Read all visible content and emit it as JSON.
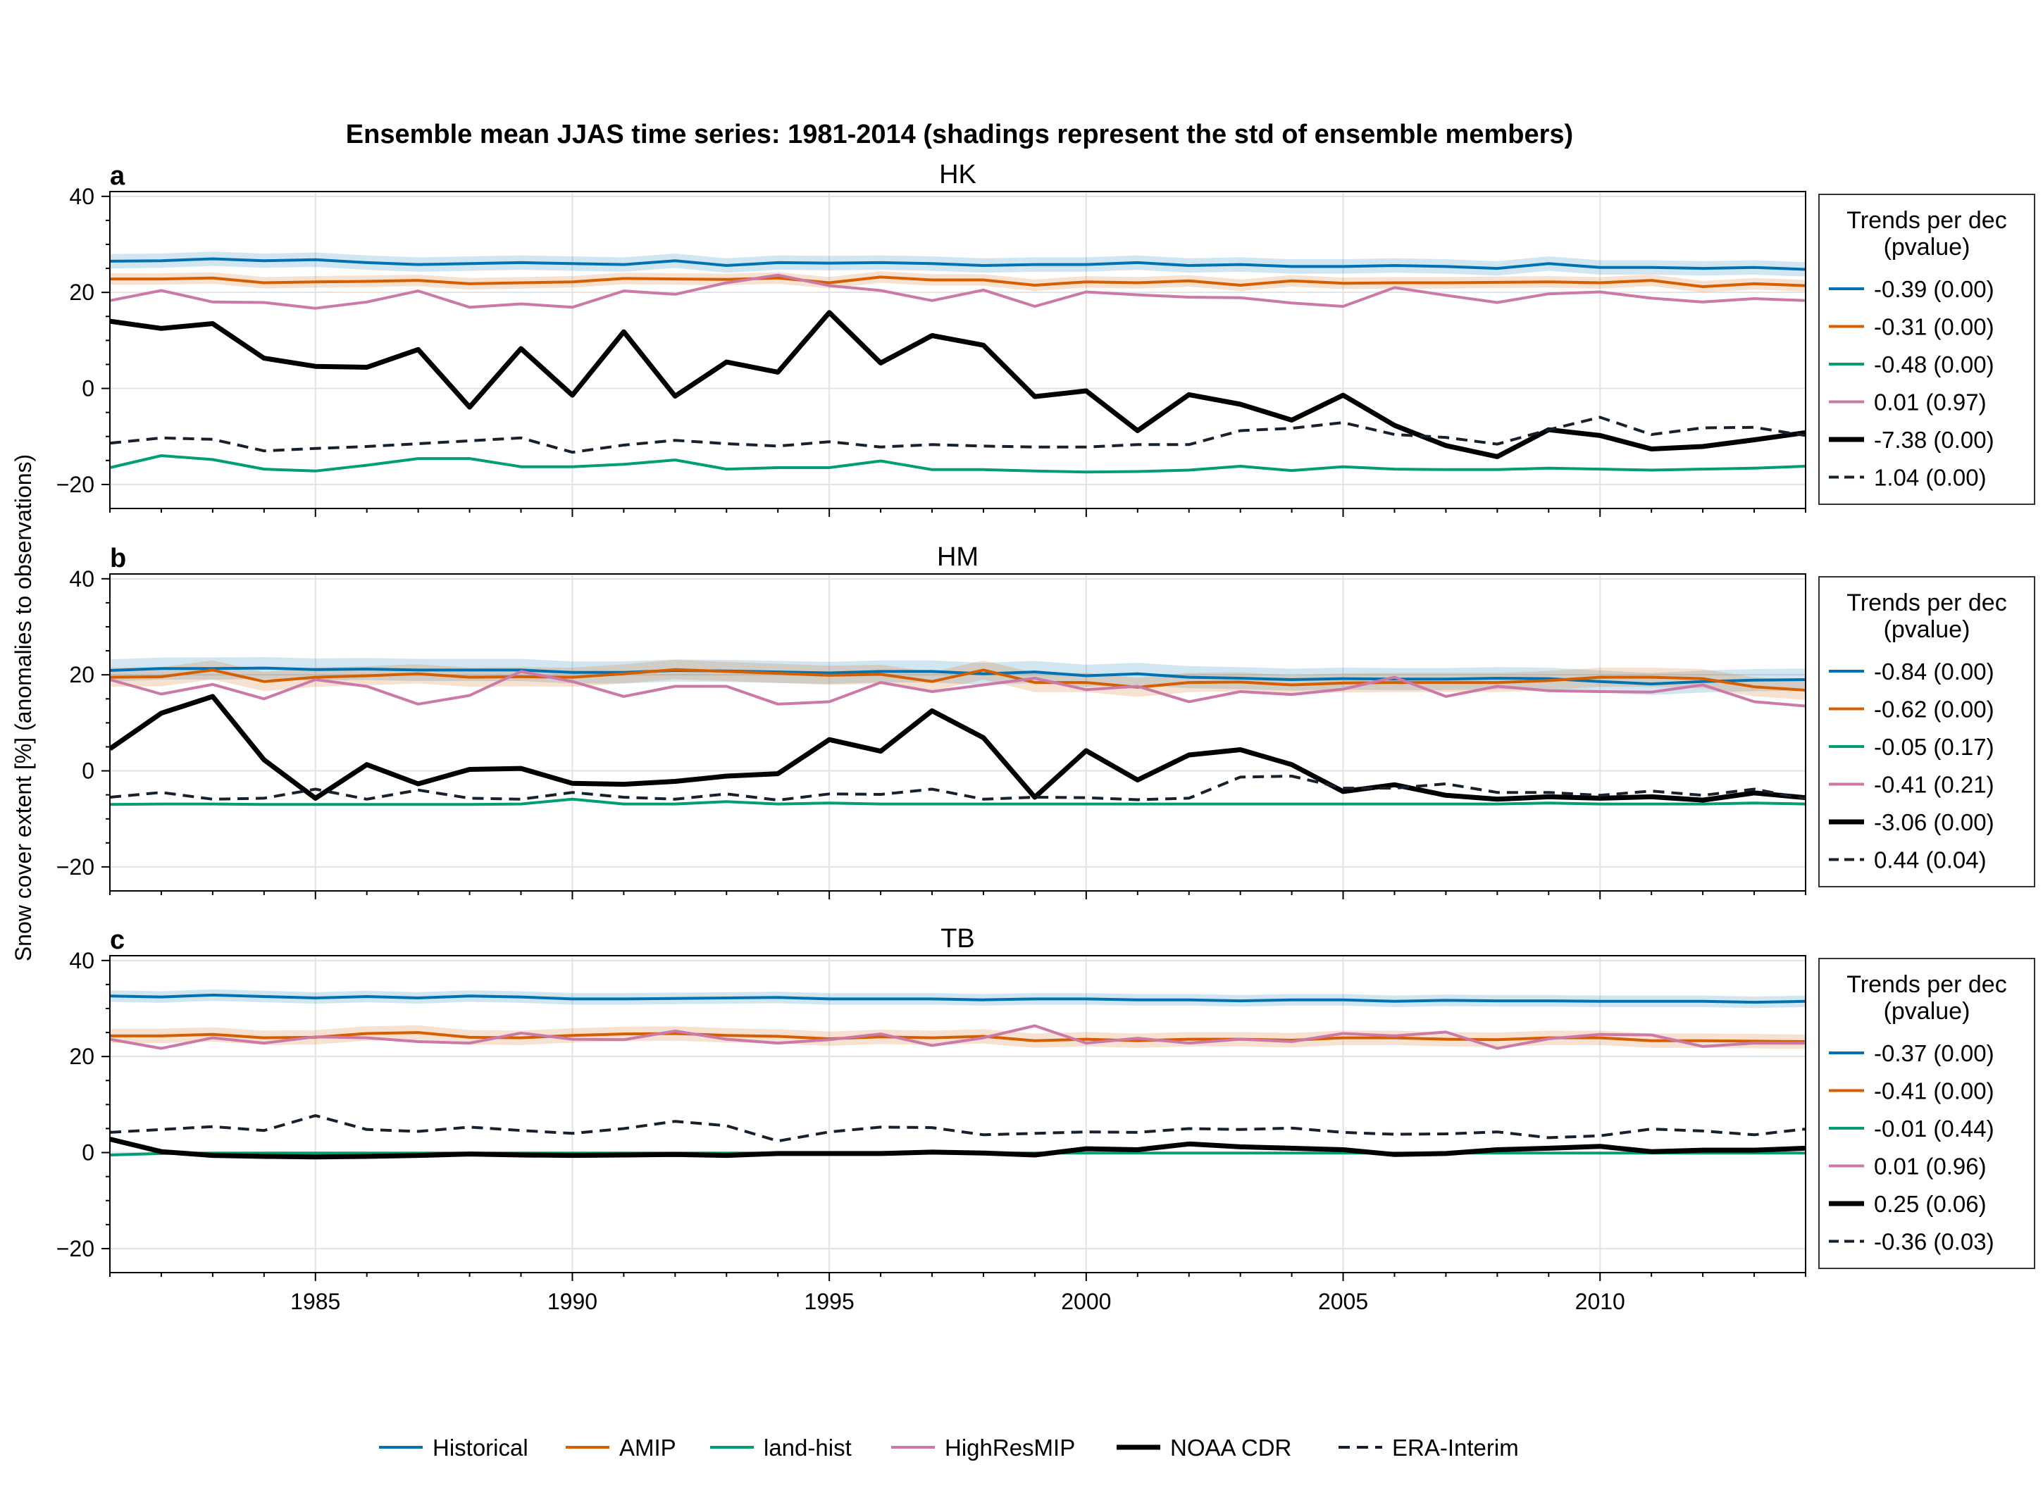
{
  "chart_data": {
    "type": "line",
    "title": "Ensemble mean JJAS time series: 1981-2014 (shadings represent the std of ensemble members)",
    "ylabel": "Snow cover extent [%] (anomalies to observations)",
    "xlim": [
      1981,
      2014
    ],
    "ylim": [
      -25,
      41
    ],
    "xticks": [
      1985,
      1990,
      1995,
      2000,
      2005,
      2010
    ],
    "yticks": [
      -20,
      0,
      20,
      40
    ],
    "grid": true,
    "years": [
      1981,
      1982,
      1983,
      1984,
      1985,
      1986,
      1987,
      1988,
      1989,
      1990,
      1991,
      1992,
      1993,
      1994,
      1995,
      1996,
      1997,
      1998,
      1999,
      2000,
      2001,
      2002,
      2003,
      2004,
      2005,
      2006,
      2007,
      2008,
      2009,
      2010,
      2011,
      2012,
      2013,
      2014
    ],
    "legend_placement": "bottom",
    "series_styles": [
      {
        "name": "Historical",
        "color": "#0072b2",
        "width": 4,
        "dash": ""
      },
      {
        "name": "AMIP",
        "color": "#d55e00",
        "width": 4,
        "dash": ""
      },
      {
        "name": "land-hist",
        "color": "#009e73",
        "width": 4,
        "dash": ""
      },
      {
        "name": "HighResMIP",
        "color": "#cc79a7",
        "width": 4,
        "dash": ""
      },
      {
        "name": "NOAA CDR",
        "color": "#000000",
        "width": 7,
        "dash": ""
      },
      {
        "name": "ERA-Interim",
        "color": "#17202e",
        "width": 4,
        "dash": "16 10"
      }
    ],
    "panels": [
      {
        "label": "a",
        "title": "HK",
        "legend_title": "Trends per dec\n(pvalue)",
        "trends": [
          "-0.39 (0.00)",
          "-0.31 (0.00)",
          "-0.48 (0.00)",
          "0.01 (0.97)",
          "-7.38 (0.00)",
          "1.04 (0.00)"
        ],
        "series": [
          {
            "name": "Historical",
            "std": 1.5,
            "values": [
              26.5,
              26.6,
              27.0,
              26.6,
              26.8,
              26.2,
              25.8,
              26.0,
              26.2,
              26.0,
              25.8,
              26.6,
              25.6,
              26.2,
              26.1,
              26.2,
              26.0,
              25.6,
              25.8,
              25.8,
              26.2,
              25.6,
              25.8,
              25.4,
              25.4,
              25.6,
              25.4,
              25.0,
              26.0,
              25.2,
              25.2,
              25.0,
              25.2,
              24.8
            ]
          },
          {
            "name": "AMIP",
            "std": 1.2,
            "values": [
              22.8,
              22.8,
              23.0,
              22.0,
              22.2,
              22.3,
              22.5,
              21.8,
              22.0,
              22.2,
              22.9,
              22.8,
              22.7,
              23.0,
              22.0,
              23.2,
              22.6,
              22.6,
              21.5,
              22.2,
              22.0,
              22.4,
              21.5,
              22.4,
              21.9,
              22.0,
              22.0,
              22.1,
              22.2,
              22.0,
              22.5,
              21.2,
              21.8,
              21.4
            ]
          },
          {
            "name": "land-hist",
            "std": 0,
            "values": [
              -16.5,
              -14.0,
              -14.8,
              -16.8,
              -17.2,
              -16.0,
              -14.6,
              -14.6,
              -16.3,
              -16.3,
              -15.8,
              -14.9,
              -16.8,
              -16.5,
              -16.5,
              -15.1,
              -16.9,
              -16.9,
              -17.2,
              -17.4,
              -17.3,
              -17.0,
              -16.2,
              -17.1,
              -16.3,
              -16.8,
              -16.9,
              -16.9,
              -16.6,
              -16.8,
              -17.0,
              -16.8,
              -16.6,
              -16.2
            ]
          },
          {
            "name": "HighResMIP",
            "std": 0,
            "values": [
              18.3,
              20.4,
              18.0,
              17.9,
              16.7,
              18.0,
              20.3,
              16.9,
              17.6,
              16.9,
              20.3,
              19.6,
              22.0,
              23.6,
              21.4,
              20.4,
              18.3,
              20.5,
              17.1,
              20.1,
              19.5,
              19.0,
              18.9,
              17.8,
              17.1,
              21.0,
              19.4,
              17.9,
              19.7,
              20.1,
              18.8,
              18.0,
              18.7,
              18.3
            ]
          },
          {
            "name": "NOAA CDR",
            "std": 0,
            "values": [
              14.0,
              12.5,
              13.5,
              6.3,
              4.6,
              4.4,
              8.1,
              -3.9,
              8.3,
              -1.4,
              11.8,
              -1.6,
              5.5,
              3.4,
              15.8,
              5.3,
              11.0,
              9.0,
              -1.7,
              -0.5,
              -8.8,
              -1.3,
              -3.3,
              -6.6,
              -1.4,
              -7.7,
              -11.9,
              -14.2,
              -8.6,
              -9.8,
              -12.6,
              -12.1,
              -10.7,
              -9.2
            ]
          },
          {
            "name": "ERA-Interim",
            "std": 0,
            "values": [
              -11.4,
              -10.3,
              -10.6,
              -13.0,
              -12.5,
              -12.1,
              -11.5,
              -10.9,
              -10.3,
              -13.3,
              -11.8,
              -10.8,
              -11.5,
              -12.0,
              -11.1,
              -12.2,
              -11.7,
              -12.0,
              -12.2,
              -12.2,
              -11.7,
              -11.7,
              -8.8,
              -8.3,
              -7.1,
              -9.6,
              -10.2,
              -11.6,
              -8.6,
              -6.0,
              -9.6,
              -8.2,
              -8.1,
              -9.8
            ]
          }
        ]
      },
      {
        "label": "b",
        "title": "HM",
        "legend_title": "Trends per dec\n(pvalue)",
        "trends": [
          "-0.84 (0.00)",
          "-0.62 (0.00)",
          "-0.05 (0.17)",
          "-0.41 (0.21)",
          "-3.06 (0.00)",
          "0.44 (0.04)"
        ],
        "series": [
          {
            "name": "Historical",
            "std": 2.3,
            "values": [
              20.9,
              21.3,
              21.3,
              21.4,
              21.1,
              21.2,
              21.0,
              21.0,
              21.0,
              20.5,
              20.5,
              20.9,
              20.8,
              20.6,
              20.4,
              20.7,
              20.7,
              20.2,
              20.6,
              19.8,
              20.2,
              19.5,
              19.3,
              19.0,
              19.2,
              19.1,
              19.1,
              19.3,
              19.2,
              18.6,
              18.1,
              18.6,
              18.9,
              19.0
            ]
          },
          {
            "name": "AMIP",
            "std": 2.0,
            "values": [
              19.5,
              19.6,
              21.0,
              18.6,
              19.5,
              19.8,
              20.2,
              19.5,
              19.6,
              19.5,
              20.2,
              21.1,
              20.7,
              20.3,
              19.9,
              20.1,
              18.6,
              21.0,
              18.4,
              18.4,
              17.4,
              18.4,
              18.5,
              17.9,
              18.3,
              18.4,
              18.4,
              18.4,
              18.8,
              19.5,
              19.5,
              19.2,
              17.5,
              16.8
            ]
          },
          {
            "name": "land-hist",
            "std": 0,
            "values": [
              -7.0,
              -6.9,
              -6.9,
              -7.0,
              -7.0,
              -7.0,
              -7.0,
              -7.0,
              -6.9,
              -5.9,
              -6.9,
              -6.9,
              -6.4,
              -6.9,
              -6.7,
              -6.9,
              -6.9,
              -6.9,
              -6.9,
              -6.9,
              -6.9,
              -6.9,
              -6.9,
              -6.9,
              -6.9,
              -6.9,
              -6.9,
              -6.9,
              -6.7,
              -6.9,
              -6.9,
              -6.9,
              -6.7,
              -6.9
            ]
          },
          {
            "name": "HighResMIP",
            "std": 0,
            "values": [
              19.0,
              16.0,
              18.0,
              15.0,
              19.0,
              17.6,
              13.9,
              15.7,
              20.7,
              18.6,
              15.5,
              17.6,
              17.6,
              13.9,
              14.4,
              18.4,
              16.5,
              17.9,
              19.3,
              16.9,
              17.6,
              14.4,
              16.5,
              15.9,
              17.0,
              19.5,
              15.5,
              17.6,
              16.7,
              16.5,
              16.4,
              17.9,
              14.4,
              13.5
            ]
          },
          {
            "name": "NOAA CDR",
            "std": 0,
            "values": [
              4.6,
              12.0,
              15.5,
              2.3,
              -5.7,
              1.3,
              -2.7,
              0.3,
              0.5,
              -2.6,
              -2.8,
              -2.2,
              -1.1,
              -0.6,
              6.5,
              4.1,
              12.5,
              6.9,
              -5.5,
              4.2,
              -1.9,
              3.3,
              4.4,
              1.3,
              -4.3,
              -2.9,
              -5.1,
              -5.9,
              -5.4,
              -5.7,
              -5.4,
              -6.1,
              -4.6,
              -5.6
            ]
          },
          {
            "name": "ERA-Interim",
            "std": 0,
            "values": [
              -5.5,
              -4.5,
              -5.9,
              -5.7,
              -3.8,
              -5.9,
              -4.0,
              -5.7,
              -5.9,
              -4.5,
              -5.5,
              -5.9,
              -4.8,
              -6.1,
              -4.8,
              -4.9,
              -3.8,
              -5.9,
              -5.5,
              -5.6,
              -6.0,
              -5.7,
              -1.3,
              -1.1,
              -3.6,
              -3.6,
              -2.7,
              -4.5,
              -4.5,
              -5.1,
              -4.2,
              -5.1,
              -3.8,
              -5.8
            ]
          }
        ]
      },
      {
        "label": "c",
        "title": "TB",
        "legend_title": "Trends per dec\n(pvalue)",
        "trends": [
          "-0.37 (0.00)",
          "-0.41 (0.00)",
          "-0.01 (0.44)",
          "0.01 (0.96)",
          "0.25 (0.06)",
          "-0.36 (0.03)"
        ],
        "series": [
          {
            "name": "Historical",
            "std": 1.2,
            "values": [
              32.6,
              32.4,
              32.8,
              32.5,
              32.2,
              32.5,
              32.2,
              32.6,
              32.4,
              32.0,
              32.0,
              32.1,
              32.2,
              32.3,
              32.0,
              32.0,
              32.0,
              31.8,
              32.0,
              32.0,
              31.8,
              31.8,
              31.6,
              31.8,
              31.8,
              31.5,
              31.7,
              31.6,
              31.6,
              31.5,
              31.5,
              31.5,
              31.3,
              31.5
            ]
          },
          {
            "name": "AMIP",
            "std": 1.5,
            "values": [
              24.3,
              24.3,
              24.6,
              23.9,
              24.0,
              24.8,
              25.0,
              24.0,
              23.9,
              24.4,
              24.7,
              24.8,
              24.4,
              24.2,
              23.7,
              24.1,
              23.9,
              24.2,
              23.3,
              23.6,
              23.3,
              23.6,
              23.6,
              23.4,
              23.9,
              23.9,
              23.6,
              23.5,
              23.9,
              23.9,
              23.3,
              23.3,
              23.2,
              23.1
            ]
          },
          {
            "name": "land-hist",
            "std": 0,
            "values": [
              -0.5,
              -0.2,
              -0.1,
              -0.1,
              -0.1,
              -0.1,
              -0.1,
              -0.1,
              -0.1,
              -0.1,
              -0.1,
              -0.1,
              -0.1,
              -0.1,
              -0.1,
              -0.1,
              -0.1,
              -0.1,
              -0.1,
              -0.1,
              -0.1,
              -0.1,
              -0.1,
              -0.1,
              -0.1,
              -0.1,
              -0.1,
              -0.1,
              -0.1,
              -0.1,
              -0.1,
              -0.1,
              -0.1,
              -0.1
            ]
          },
          {
            "name": "HighResMIP",
            "std": 0,
            "values": [
              23.6,
              21.7,
              23.9,
              22.8,
              24.1,
              23.9,
              23.1,
              22.8,
              24.9,
              23.6,
              23.5,
              25.3,
              23.6,
              22.8,
              23.5,
              24.7,
              22.3,
              23.9,
              26.4,
              22.8,
              23.8,
              22.8,
              23.6,
              23.1,
              24.8,
              24.3,
              25.1,
              21.7,
              23.7,
              24.6,
              24.5,
              22.1,
              22.8,
              22.8
            ]
          },
          {
            "name": "NOAA CDR",
            "std": 0,
            "values": [
              2.8,
              0.2,
              -0.6,
              -0.8,
              -0.9,
              -0.8,
              -0.6,
              -0.3,
              -0.5,
              -0.6,
              -0.5,
              -0.4,
              -0.6,
              -0.2,
              -0.2,
              -0.2,
              0.1,
              -0.1,
              -0.5,
              0.8,
              0.6,
              1.8,
              1.2,
              0.9,
              0.6,
              -0.4,
              -0.2,
              0.6,
              0.9,
              1.3,
              0.2,
              0.5,
              0.5,
              0.9
            ]
          },
          {
            "name": "ERA-Interim",
            "std": 0,
            "values": [
              4.2,
              4.8,
              5.4,
              4.6,
              7.7,
              4.8,
              4.4,
              5.3,
              4.6,
              4.0,
              5.0,
              6.5,
              5.6,
              2.4,
              4.3,
              5.3,
              5.2,
              3.7,
              4.0,
              4.3,
              4.2,
              5.0,
              4.8,
              5.1,
              4.2,
              3.8,
              3.9,
              4.3,
              3.1,
              3.5,
              4.9,
              4.5,
              3.7,
              4.9
            ]
          }
        ]
      }
    ]
  }
}
